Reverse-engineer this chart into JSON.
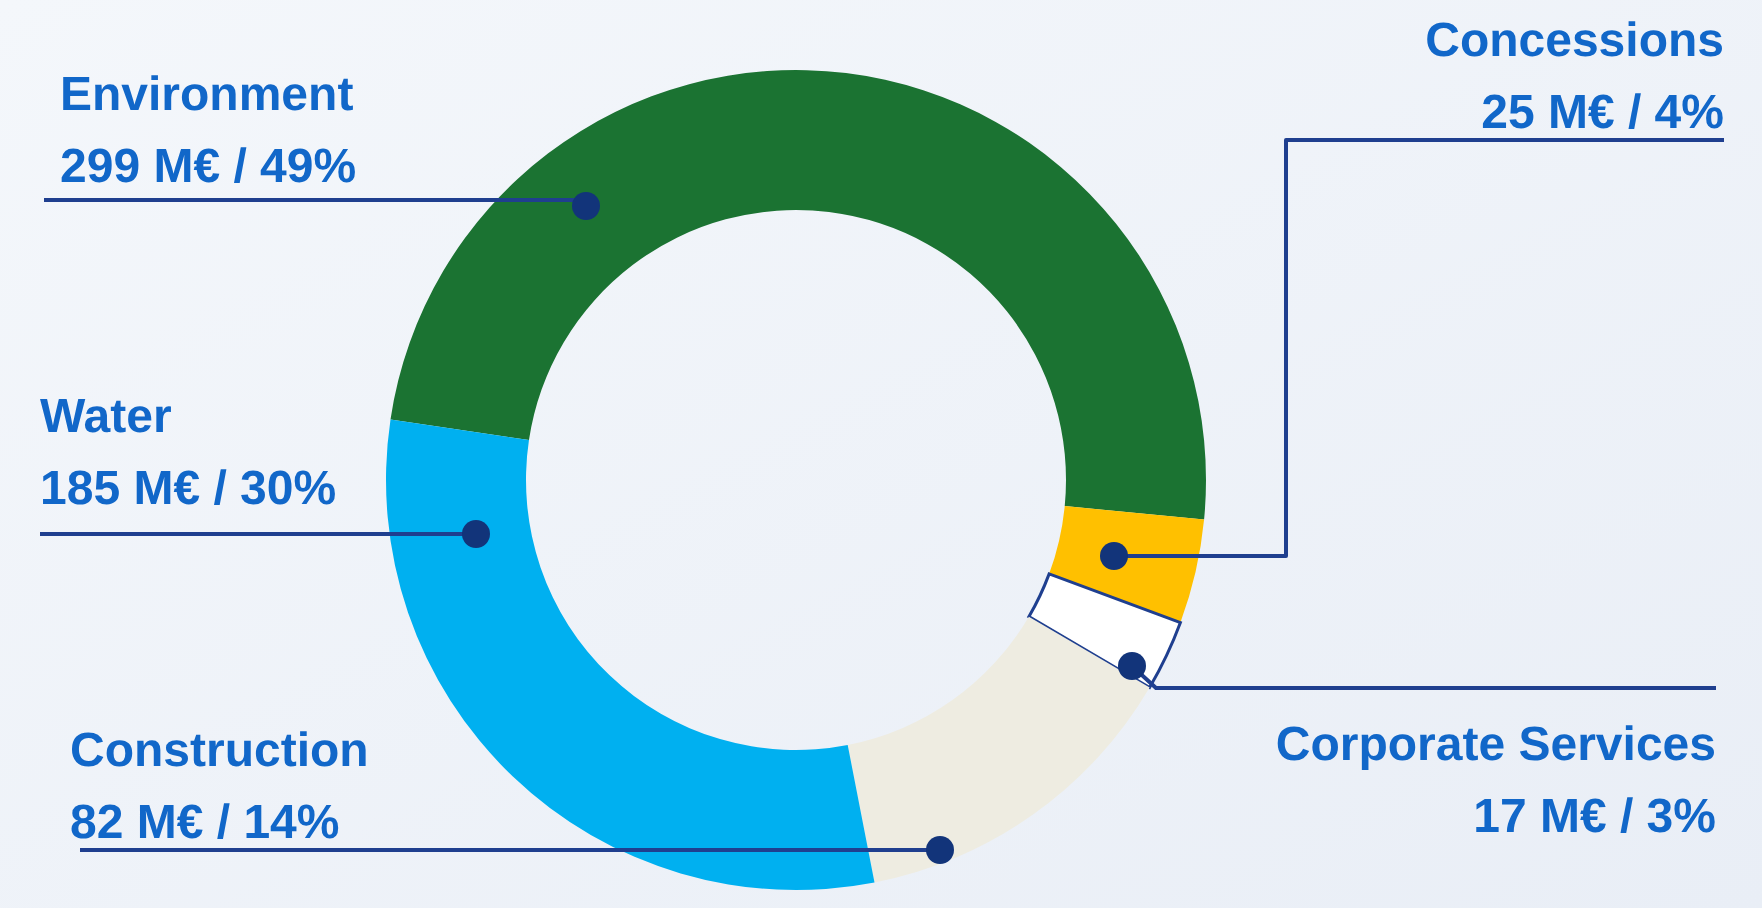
{
  "chart_data": {
    "type": "donut",
    "categories": [
      "Environment",
      "Concessions",
      "Corporate Services",
      "Construction",
      "Water"
    ],
    "values": [
      299,
      25,
      17,
      82,
      185
    ],
    "value_labels": [
      "299 M€ / 49%",
      "25 M€ / 4%",
      "17 M€ / 3%",
      "82 M€ / 14%",
      "185 M€ / 30%"
    ],
    "colors": [
      "#1b7332",
      "#ffc000",
      "#ffffff",
      "#eeece1",
      "#00b0f0"
    ]
  }
}
